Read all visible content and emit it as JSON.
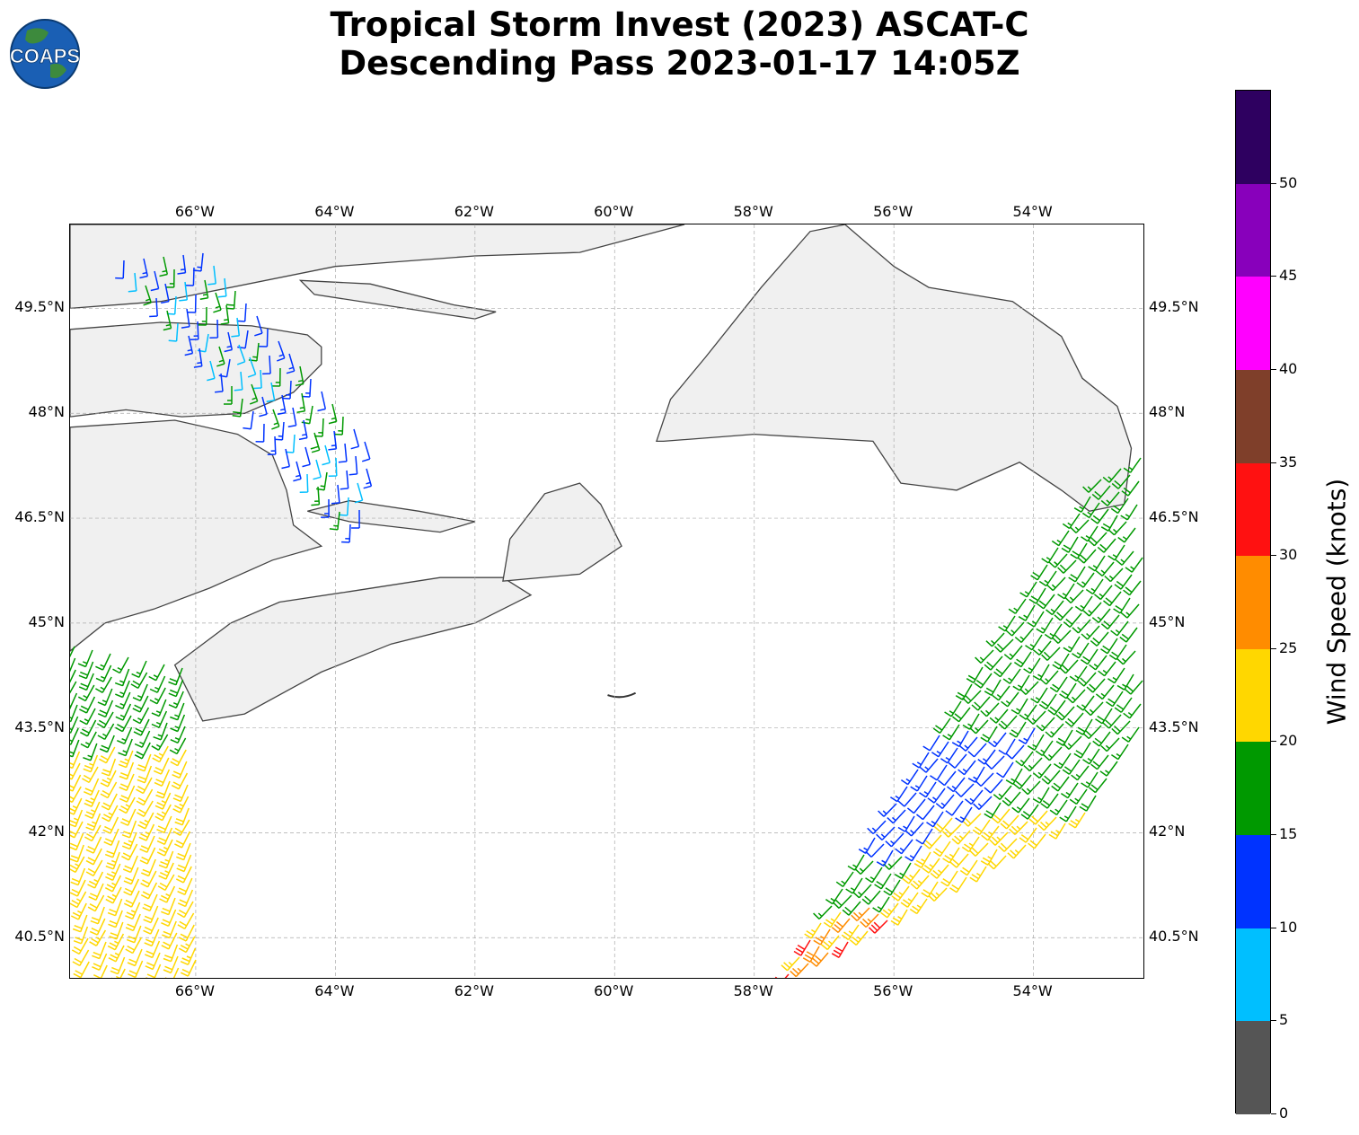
{
  "title_line1": "Tropical Storm Invest (2023) ASCAT-C",
  "title_line2": "Descending Pass 2023-01-17 14:05Z",
  "logo_text": "COAPS",
  "map": {
    "lon_range": [
      -67.8,
      -52.4
    ],
    "lat_range": [
      39.9,
      50.7
    ],
    "lon_ticks": [
      {
        "value": -66,
        "label": "66°W"
      },
      {
        "value": -64,
        "label": "64°W"
      },
      {
        "value": -62,
        "label": "62°W"
      },
      {
        "value": -60,
        "label": "60°W"
      },
      {
        "value": -58,
        "label": "58°W"
      },
      {
        "value": -56,
        "label": "56°W"
      },
      {
        "value": -54,
        "label": "54°W"
      }
    ],
    "lat_ticks": [
      {
        "value": 49.5,
        "label": "49.5°N"
      },
      {
        "value": 48,
        "label": "48°N"
      },
      {
        "value": 46.5,
        "label": "46.5°N"
      },
      {
        "value": 45,
        "label": "45°N"
      },
      {
        "value": 43.5,
        "label": "43.5°N"
      },
      {
        "value": 42,
        "label": "42°N"
      },
      {
        "value": 40.5,
        "label": "40.5°N"
      }
    ],
    "land_color": "#f0f0f0",
    "coast_color": "#444444",
    "grid_color": "#aaaaaa"
  },
  "colorbar": {
    "label": "Wind Speed (knots)",
    "range": [
      0,
      55
    ],
    "ticks": [
      {
        "value": 0,
        "label": "0"
      },
      {
        "value": 5,
        "label": "5"
      },
      {
        "value": 10,
        "label": "10"
      },
      {
        "value": 15,
        "label": "15"
      },
      {
        "value": 20,
        "label": "20"
      },
      {
        "value": 25,
        "label": "25"
      },
      {
        "value": 30,
        "label": "30"
      },
      {
        "value": 35,
        "label": "35"
      },
      {
        "value": 40,
        "label": "40"
      },
      {
        "value": 45,
        "label": "45"
      },
      {
        "value": 50,
        "label": "50"
      }
    ],
    "bins": [
      {
        "min": 0,
        "max": 5,
        "color": "#555555"
      },
      {
        "min": 5,
        "max": 10,
        "color": "#00bfff"
      },
      {
        "min": 10,
        "max": 15,
        "color": "#0033ff"
      },
      {
        "min": 15,
        "max": 20,
        "color": "#009900"
      },
      {
        "min": 20,
        "max": 25,
        "color": "#ffd700"
      },
      {
        "min": 25,
        "max": 30,
        "color": "#ff8c00"
      },
      {
        "min": 30,
        "max": 35,
        "color": "#ff1111"
      },
      {
        "min": 35,
        "max": 40,
        "color": "#7f3f2a"
      },
      {
        "min": 40,
        "max": 45,
        "color": "#ff00ff"
      },
      {
        "min": 45,
        "max": 50,
        "color": "#8800bb"
      },
      {
        "min": 50,
        "max": 55,
        "color": "#2e0060"
      }
    ]
  }
}
